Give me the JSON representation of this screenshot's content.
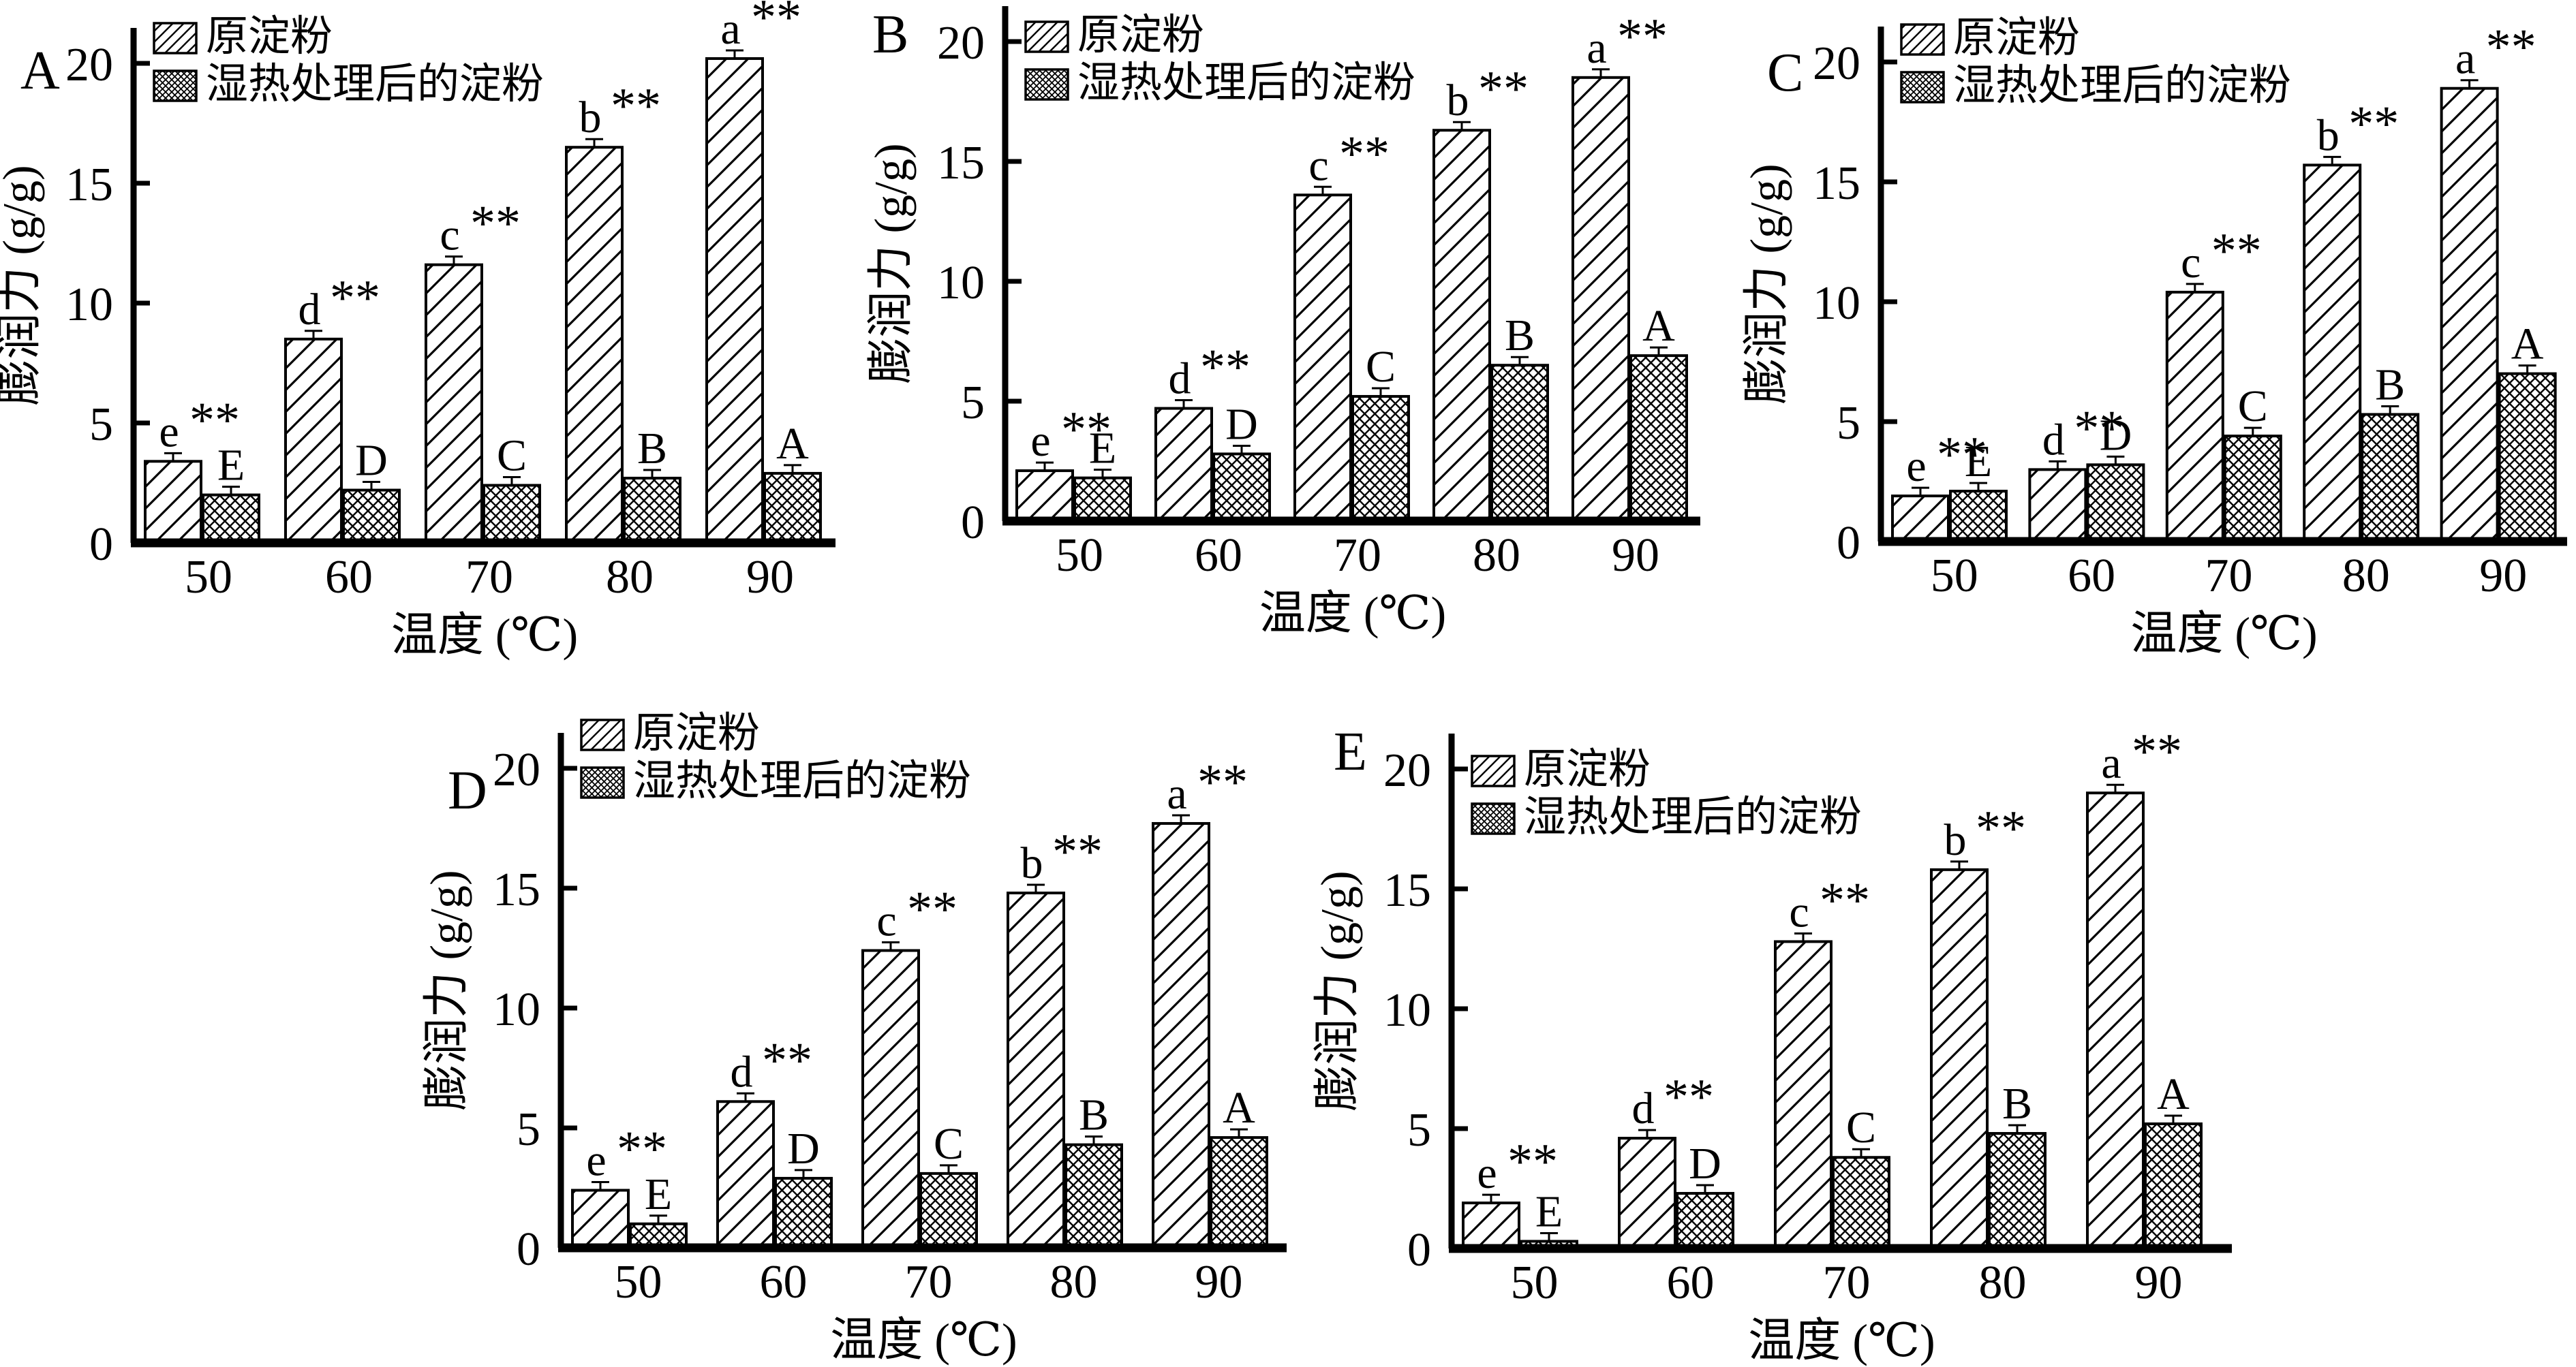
{
  "figure": {
    "background": "#ffffff",
    "foreground": "#000000",
    "panel_labels": [
      "A",
      "B",
      "C",
      "D",
      "E"
    ],
    "significance_marker": "**"
  },
  "legend": {
    "position": "top-left inside plot",
    "items": [
      {
        "label": "原淀粉",
        "pattern": "diagonal-hatch"
      },
      {
        "label": "湿热处理后的淀粉",
        "pattern": "diamond-crosshatch"
      }
    ]
  },
  "axes": {
    "xlabel": "温度 (℃)",
    "ylabel": "膨润力 (g/g)",
    "categories": [
      "50",
      "60",
      "70",
      "80",
      "90"
    ],
    "yticks": [
      "0",
      "5",
      "10",
      "15",
      "20"
    ],
    "ylim": [
      0,
      20
    ],
    "grid": "off"
  },
  "chart_data": [
    {
      "type": "bar",
      "panel": "A",
      "title": "",
      "xlabel": "温度 (℃)",
      "ylabel": "膨润力 (g/g)",
      "ylim": [
        0,
        20
      ],
      "yticks": [
        0,
        5,
        10,
        15,
        20
      ],
      "categories": [
        50,
        60,
        70,
        80,
        90
      ],
      "series": [
        {
          "name": "原淀粉",
          "pattern": "diagonal-hatch",
          "values": [
            3.4,
            8.5,
            11.6,
            16.5,
            20.2
          ],
          "letters": [
            "e",
            "d",
            "c",
            "b",
            "a"
          ],
          "sig": [
            "**",
            "**",
            "**",
            "**",
            "**"
          ]
        },
        {
          "name": "湿热处理后的淀粉",
          "pattern": "diamond-crosshatch",
          "values": [
            2.0,
            2.2,
            2.4,
            2.7,
            2.9
          ],
          "letters": [
            "E",
            "D",
            "C",
            "B",
            "A"
          ],
          "sig": [
            "",
            "",
            "",
            "",
            ""
          ]
        }
      ]
    },
    {
      "type": "bar",
      "panel": "B",
      "title": "",
      "xlabel": "温度 (℃)",
      "ylabel": "膨润力 (g/g)",
      "ylim": [
        0,
        20
      ],
      "yticks": [
        0,
        5,
        10,
        15,
        20
      ],
      "categories": [
        50,
        60,
        70,
        80,
        90
      ],
      "series": [
        {
          "name": "原淀粉",
          "pattern": "diagonal-hatch",
          "values": [
            2.1,
            4.7,
            13.6,
            16.3,
            18.5
          ],
          "letters": [
            "e",
            "d",
            "c",
            "b",
            "a"
          ],
          "sig": [
            "**",
            "**",
            "**",
            "**",
            "**"
          ]
        },
        {
          "name": "湿热处理后的淀粉",
          "pattern": "diamond-crosshatch",
          "values": [
            1.8,
            2.8,
            5.2,
            6.5,
            6.9
          ],
          "letters": [
            "E",
            "D",
            "C",
            "B",
            "A"
          ],
          "sig": [
            "",
            "",
            "",
            "",
            ""
          ]
        }
      ]
    },
    {
      "type": "bar",
      "panel": "C",
      "title": "",
      "xlabel": "温度 (℃)",
      "ylabel": "膨润力 (g/g)",
      "ylim": [
        0,
        20
      ],
      "yticks": [
        0,
        5,
        10,
        15,
        20
      ],
      "categories": [
        50,
        60,
        70,
        80,
        90
      ],
      "series": [
        {
          "name": "原淀粉",
          "pattern": "diagonal-hatch",
          "values": [
            1.9,
            3.0,
            10.4,
            15.7,
            18.9
          ],
          "letters": [
            "e",
            "d",
            "c",
            "b",
            "a"
          ],
          "sig": [
            "**",
            "**",
            "**",
            "**",
            "**"
          ]
        },
        {
          "name": "湿热处理后的淀粉",
          "pattern": "diamond-crosshatch",
          "values": [
            2.1,
            3.2,
            4.4,
            5.3,
            7.0
          ],
          "letters": [
            "E",
            "D",
            "C",
            "B",
            "A"
          ],
          "sig": [
            "",
            "",
            "",
            "",
            ""
          ]
        }
      ]
    },
    {
      "type": "bar",
      "panel": "D",
      "title": "",
      "xlabel": "温度 (℃)",
      "ylabel": "膨润力 (g/g)",
      "ylim": [
        0,
        20
      ],
      "yticks": [
        0,
        5,
        10,
        15,
        20
      ],
      "categories": [
        50,
        60,
        70,
        80,
        90
      ],
      "series": [
        {
          "name": "原淀粉",
          "pattern": "diagonal-hatch",
          "values": [
            2.4,
            6.1,
            12.4,
            14.8,
            17.7
          ],
          "letters": [
            "e",
            "d",
            "c",
            "b",
            "a"
          ],
          "sig": [
            "**",
            "**",
            "**",
            "**",
            "**"
          ]
        },
        {
          "name": "湿热处理后的淀粉",
          "pattern": "diamond-crosshatch",
          "values": [
            1.0,
            2.9,
            3.1,
            4.3,
            4.6
          ],
          "letters": [
            "E",
            "D",
            "C",
            "B",
            "A"
          ],
          "sig": [
            "",
            "",
            "",
            "",
            ""
          ]
        }
      ]
    },
    {
      "type": "bar",
      "panel": "E",
      "title": "",
      "xlabel": "温度 (℃)",
      "ylabel": "膨润力 (g/g)",
      "ylim": [
        0,
        20
      ],
      "yticks": [
        0,
        5,
        10,
        15,
        20
      ],
      "categories": [
        50,
        60,
        70,
        80,
        90
      ],
      "series": [
        {
          "name": "原淀粉",
          "pattern": "diagonal-hatch",
          "values": [
            1.9,
            4.6,
            12.8,
            15.8,
            19.0
          ],
          "letters": [
            "e",
            "d",
            "c",
            "b",
            "a"
          ],
          "sig": [
            "**",
            "**",
            "**",
            "**",
            "**"
          ]
        },
        {
          "name": "湿热处理后的淀粉",
          "pattern": "diamond-crosshatch",
          "values": [
            0.3,
            2.3,
            3.8,
            4.8,
            5.2
          ],
          "letters": [
            "E",
            "D",
            "C",
            "B",
            "A"
          ],
          "sig": [
            "",
            "",
            "",
            "",
            ""
          ]
        }
      ]
    }
  ]
}
